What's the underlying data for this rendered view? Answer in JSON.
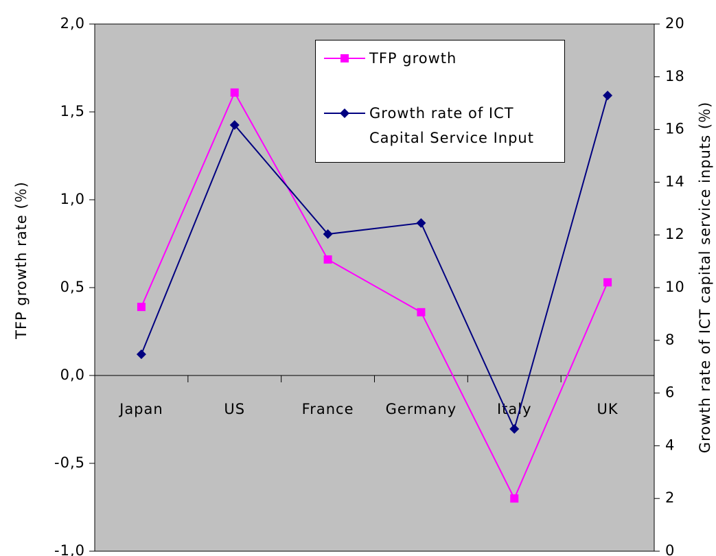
{
  "chart_data": {
    "type": "line",
    "categories": [
      "Japan",
      "US",
      "France",
      "Germany",
      "Italy",
      "UK"
    ],
    "series": [
      {
        "name": "TFP growth",
        "color": "#ff00ff",
        "marker": "square",
        "values": [
          0.39,
          1.61,
          0.66,
          0.36,
          -0.7,
          0.53
        ]
      },
      {
        "name": "Growth rate of ICT Capital Service Input",
        "color": "#000080",
        "marker": "diamond",
        "axis": "y2",
        "values": [
          7.47,
          16.17,
          12.03,
          12.45,
          4.64,
          17.29
        ]
      }
    ],
    "ylabel": "TFP growth rate (％)",
    "y2label": "Growth rate of ICT capital service inputs (％)",
    "ylim": [
      -1.0,
      2.0
    ],
    "yticks": [
      {
        "value": -1.0,
        "label": "-1,0"
      },
      {
        "value": -0.5,
        "label": "-0,5"
      },
      {
        "value": 0.0,
        "label": "0,0"
      },
      {
        "value": 0.5,
        "label": "0,5"
      },
      {
        "value": 1.0,
        "label": "1,0"
      },
      {
        "value": 1.5,
        "label": "1,5"
      },
      {
        "value": 2.0,
        "label": "2,0"
      }
    ],
    "y2lim": [
      0,
      20
    ],
    "y2ticks": [
      0,
      2,
      4,
      6,
      8,
      10,
      12,
      14,
      16,
      18,
      20
    ],
    "background": "#c0c0c0"
  }
}
